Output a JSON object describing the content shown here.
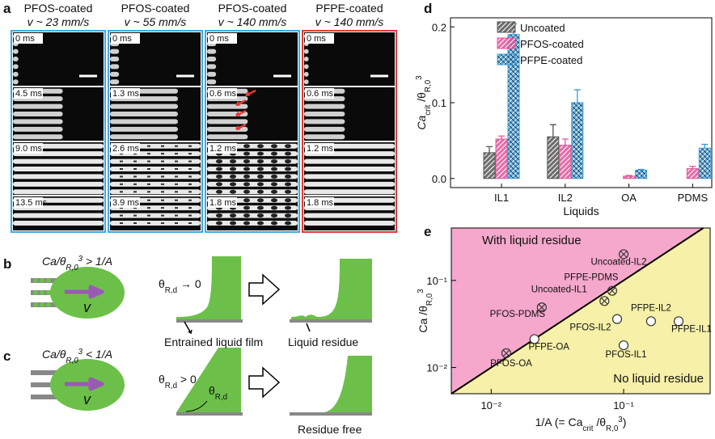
{
  "panel_labels": [
    "a",
    "b",
    "c",
    "d",
    "e"
  ],
  "panel_a": {
    "columns": [
      {
        "title": "PFOS-coated",
        "speed": "v ~ 23 mm/s",
        "frame_color": "#3fa9e0",
        "times": [
          "0 ms",
          "4.5 ms",
          "9.0 ms",
          "13.5 ms"
        ]
      },
      {
        "title": "PFOS-coated",
        "speed": "v ~ 55 mm/s",
        "frame_color": "#3fa9e0",
        "times": [
          "0 ms",
          "1.3 ms",
          "2.6 ms",
          "3.9 ms"
        ]
      },
      {
        "title": "PFOS-coated",
        "speed": "v ~ 140 mm/s",
        "frame_color": "#3fa9e0",
        "times": [
          "0 ms",
          "0.6 ms",
          "1.2 ms",
          "1.8 ms"
        ]
      },
      {
        "title": "PFPE-coated",
        "speed": "v ~ 140 mm/s",
        "frame_color": "#e53935",
        "times": [
          "0 ms",
          "0.6 ms",
          "1.2 ms",
          "1.8 ms"
        ]
      }
    ]
  },
  "panel_b": {
    "condition": {
      "pre": "Ca/θ",
      "sub": "R,0",
      "sup": "3",
      "post": " > 1/A"
    },
    "velocity": "v",
    "angle": {
      "pre": "θ",
      "sub": "R,d",
      "post": " → 0"
    },
    "film_label": "Entrained liquid film",
    "result": "Liquid residue"
  },
  "panel_c": {
    "condition": {
      "pre": "Ca/θ",
      "sub": "R,0",
      "sup": "3",
      "post": " < 1/A"
    },
    "velocity": "v",
    "angle": {
      "pre": "θ",
      "sub": "R,d",
      "post": " > 0"
    },
    "angle_mark": {
      "pre": "θ",
      "sub": "R,d"
    },
    "result": "Residue free"
  },
  "chart_data": [
    {
      "type": "bar",
      "x_label": "Liquids",
      "y_label": {
        "pre": "Ca",
        "sub": "crit",
        "mid": " /θ",
        "sub2": "R,0",
        "sup": "3"
      },
      "categories": [
        "IL1",
        "IL2",
        "OA",
        "PDMS"
      ],
      "series": [
        {
          "name": "Uncoated",
          "color": "#555555",
          "pattern": "diagonal",
          "values": [
            0.034,
            0.055,
            null,
            null
          ],
          "errors": [
            0.008,
            0.016,
            null,
            null
          ]
        },
        {
          "name": "PFOS-coated",
          "color": "#e0559a",
          "pattern": "diagonal",
          "values": [
            0.052,
            0.044,
            0.003,
            0.013
          ],
          "errors": [
            0.004,
            0.008,
            0.001,
            0.003
          ]
        },
        {
          "name": "PFPE-coated",
          "color": "#3a9ad9",
          "pattern": "cross",
          "values": [
            0.19,
            0.1,
            0.011,
            0.04
          ],
          "errors": [
            0.014,
            0.017,
            0.001,
            0.005
          ]
        }
      ],
      "ylim": [
        -0.012,
        0.212
      ],
      "yticks": [
        {
          "value": 0,
          "label": "0.0"
        },
        0.1,
        0.2
      ],
      "legend": "upper center"
    },
    {
      "type": "scatter",
      "log_x": true,
      "log_y": true,
      "x_label": {
        "pre": "1/A (= Ca",
        "sub": "crit",
        "mid": " /θ",
        "sub2": "R,0",
        "sup": "3",
        "post": ")"
      },
      "y_label": {
        "pre": "Ca /θ",
        "sub": "R,0",
        "sup": "3"
      },
      "upper_region": {
        "text": "With liquid residue",
        "color": "#f5a8cb"
      },
      "lower_region": {
        "text": "No liquid residue",
        "color": "#f6f0a8"
      },
      "xlim": [
        0.005,
        0.45
      ],
      "ylim": [
        0.005,
        0.4
      ],
      "xticks": [
        {
          "value": 0.01,
          "label": "10⁻²"
        },
        {
          "value": 0.1,
          "label": "10⁻¹"
        }
      ],
      "yticks": [
        {
          "value": 0.01,
          "label": "10⁻²"
        },
        {
          "value": 0.1,
          "label": "10⁻¹"
        }
      ],
      "points": [
        {
          "label": "Uncoated-IL2",
          "x": 0.1,
          "y": 0.2,
          "residue": true
        },
        {
          "label": "PFPE-PDMS",
          "x": 0.082,
          "y": 0.076,
          "residue": true
        },
        {
          "label": "Uncoated-IL1",
          "x": 0.0716,
          "y": 0.058,
          "residue": true
        },
        {
          "label": "PFOS-PDMS",
          "x": 0.0241,
          "y": 0.049,
          "residue": true
        },
        {
          "label": "PFOS-OA",
          "x": 0.013,
          "y": 0.0146,
          "residue": true
        },
        {
          "label": "PFPE-OA",
          "x": 0.0212,
          "y": 0.0212,
          "residue": false
        },
        {
          "label": "PFOS-IL2",
          "x": 0.0893,
          "y": 0.036,
          "residue": false
        },
        {
          "label": "PFOS-IL1",
          "x": 0.1,
          "y": 0.018,
          "residue": false
        },
        {
          "label": "PFPE-IL2",
          "x": 0.161,
          "y": 0.034,
          "residue": false
        },
        {
          "label": "PFPE-IL1",
          "x": 0.26,
          "y": 0.034,
          "residue": false
        }
      ]
    }
  ]
}
